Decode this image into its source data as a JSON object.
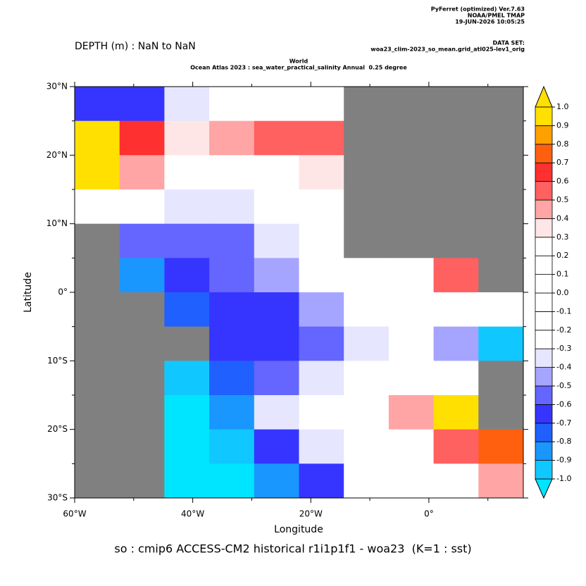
{
  "chart_data": {
    "type": "heatmap",
    "header": {
      "software": "PyFerret (optimized) Ver.7.63",
      "org": "NOAA/PMEL TMAP",
      "date": "19-JUN-2026 10:05:25",
      "dataset_label": "DATA SET:",
      "dataset": "woa23_clim-2023_so_mean.grid_atl025-lev1_orig"
    },
    "depth_label": "DEPTH (m) : NaN to NaN",
    "subtitle_1": "World",
    "subtitle_2": "Ocean Atlas 2023 : sea_water_practical_salinity Annual  0.25 degree",
    "title": "so : cmip6 ACCESS-CM2 historical r1i1p1f1 - woa23  (K=1 : sst)",
    "xlabel": "Longitude",
    "ylabel": "Latitude",
    "xlim": [
      -60,
      16
    ],
    "ylim": [
      -30,
      30
    ],
    "xticks": [
      {
        "value": -60,
        "label": "60°W"
      },
      {
        "value": -40,
        "label": "40°W"
      },
      {
        "value": -20,
        "label": "20°W"
      },
      {
        "value": 0,
        "label": "0°"
      }
    ],
    "xminorticks": [
      -50,
      -30,
      -10,
      10
    ],
    "yticks": [
      {
        "value": 30,
        "label": "30°N"
      },
      {
        "value": 20,
        "label": "20°N"
      },
      {
        "value": 10,
        "label": "10°N"
      },
      {
        "value": 0,
        "label": "0°"
      },
      {
        "value": -10,
        "label": "10°S"
      },
      {
        "value": -20,
        "label": "20°S"
      },
      {
        "value": -30,
        "label": "30°S"
      }
    ],
    "yminorticks": [
      25,
      15,
      5,
      -5,
      -15,
      -25
    ],
    "land_color": "#808080",
    "x_bins": [
      -60,
      -52.4,
      -44.8,
      -37.2,
      -29.6,
      -22,
      -14.4,
      -6.8,
      0.8,
      8.4,
      16
    ],
    "y_bins": [
      30,
      25,
      20,
      15,
      10,
      5,
      0,
      -5,
      -10,
      -15,
      -20,
      -25,
      -30
    ],
    "values": [
      [
        -0.6,
        -0.6,
        -0.3,
        0.1,
        0.1,
        0.2,
        null,
        null,
        null,
        null
      ],
      [
        1.0,
        0.7,
        0.4,
        0.5,
        0.6,
        0.6,
        null,
        null,
        null,
        null
      ],
      [
        1.0,
        0.5,
        0.2,
        0.2,
        0.3,
        0.4,
        null,
        null,
        null,
        null
      ],
      [
        0.1,
        0.0,
        -0.3,
        -0.3,
        -0.1,
        0.1,
        null,
        null,
        null,
        null
      ],
      [
        null,
        -0.5,
        -0.5,
        -0.5,
        -0.3,
        0.0,
        null,
        null,
        null,
        null
      ],
      [
        null,
        -0.8,
        -0.6,
        -0.5,
        -0.4,
        -0.2,
        0.0,
        0.1,
        0.6,
        null
      ],
      [
        null,
        null,
        -0.7,
        -0.6,
        -0.6,
        -0.4,
        -0.2,
        -0.1,
        -0.1,
        0.3
      ],
      [
        null,
        null,
        null,
        -0.6,
        -0.6,
        -0.5,
        -0.3,
        -0.2,
        -0.4,
        -0.9
      ],
      [
        null,
        null,
        -0.9,
        -0.7,
        -0.5,
        -0.3,
        0.0,
        0.0,
        0.1,
        null
      ],
      [
        null,
        null,
        -1.0,
        -0.8,
        -0.3,
        0.0,
        0.1,
        0.5,
        1.0,
        null
      ],
      [
        null,
        null,
        -1.0,
        -0.9,
        -0.6,
        -0.3,
        0.1,
        0.3,
        0.6,
        0.8
      ],
      [
        null,
        null,
        -1.0,
        -1.0,
        -0.8,
        -0.6,
        -0.2,
        0.1,
        0.3,
        0.5
      ]
    ],
    "levels": [
      {
        "value": -1,
        "label": "-1.0"
      },
      -0.9,
      -0.8,
      -0.7,
      -0.6,
      -0.5,
      -0.4,
      -0.3,
      -0.2,
      -0.1,
      {
        "value": 0,
        "label": "0.0"
      },
      0.1,
      0.2,
      0.3,
      0.4,
      0.5,
      0.6,
      0.7,
      0.8,
      0.9,
      {
        "value": 1,
        "label": "1.0"
      }
    ],
    "colors": [
      "#00e5ff",
      "#10c8ff",
      "#1a96ff",
      "#2060ff",
      "#3535ff",
      "#6565ff",
      "#a5a5ff",
      "#e6e6ff",
      "#ffffff",
      "#ffffff",
      "#ffffff",
      "#ffffff",
      "#ffffff",
      "#ffffff",
      "#ffe6e6",
      "#ffa5a5",
      "#ff6060",
      "#ff3030",
      "#ff6010",
      "#ffa000",
      "#ffe000",
      "#ffe000"
    ]
  }
}
